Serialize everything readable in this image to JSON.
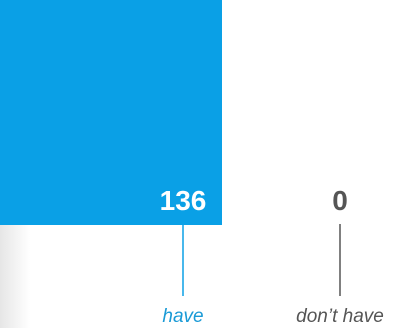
{
  "chart_data": {
    "type": "bar",
    "categories": [
      "have",
      "don’t have"
    ],
    "values": [
      136,
      0
    ],
    "value_labels": [
      "136",
      "0"
    ],
    "colors": {
      "have": "#0aa0e6",
      "dont_have": "#555555",
      "have_label": "#1a9ad6",
      "dont_have_label": "#555555",
      "value_on_bar": "#ffffff"
    },
    "title": "",
    "xlabel": "",
    "ylabel": "",
    "grid": false,
    "legend": "none"
  }
}
